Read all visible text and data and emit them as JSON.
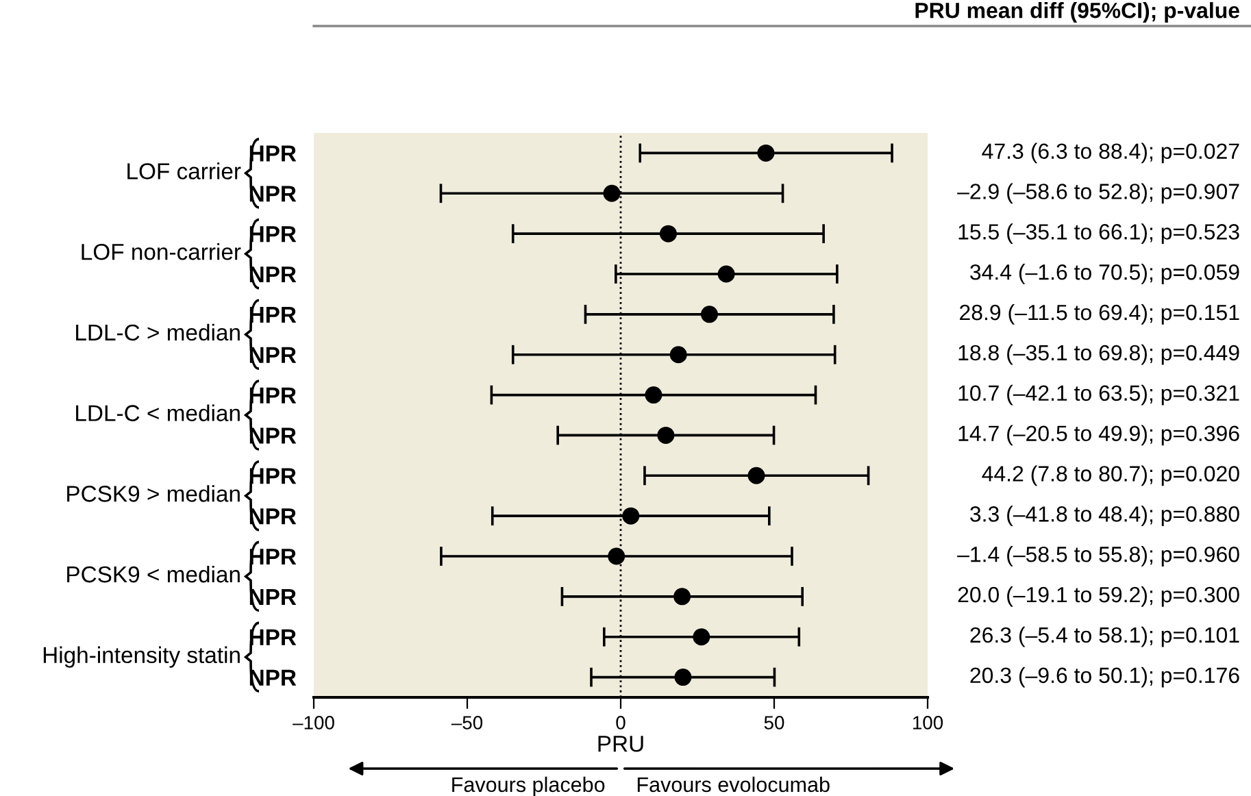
{
  "chart_data": {
    "type": "scatter",
    "orientation": "horizontal",
    "xlabel": "PRU",
    "categories": [
      "HPR",
      "NPR",
      "HPR",
      "NPR",
      "HPR",
      "NPR",
      "HPR",
      "NPR",
      "HPR",
      "NPR",
      "HPR",
      "NPR",
      "HPR",
      "NPR"
    ],
    "values": [
      47.3,
      -2.9,
      15.5,
      34.4,
      28.9,
      18.8,
      10.7,
      14.7,
      44.2,
      3.3,
      -1.4,
      20.0,
      26.3,
      20.3
    ],
    "errors": [
      [
        6.3,
        88.4
      ],
      [
        -58.6,
        52.8
      ],
      [
        -35.1,
        66.1
      ],
      [
        -1.6,
        70.5
      ],
      [
        -11.5,
        69.4
      ],
      [
        -35.1,
        69.8
      ],
      [
        -42.1,
        63.5
      ],
      [
        -20.5,
        49.9
      ],
      [
        7.8,
        80.7
      ],
      [
        -41.8,
        48.4
      ],
      [
        -58.5,
        55.8
      ],
      [
        -19.1,
        59.2
      ],
      [
        -5.4,
        58.1
      ],
      [
        -9.6,
        50.1
      ]
    ],
    "value_labels": [
      "47.3 (6.3 to 88.4); p=0.027",
      "–2.9 (–58.6 to 52.8); p=0.907",
      "15.5 (–35.1 to 66.1); p=0.523",
      "34.4 (–1.6 to 70.5); p=0.059",
      "28.9 (–11.5 to 69.4); p=0.151",
      "18.8 (–35.1 to 69.8); p=0.449",
      "10.7 (–42.1 to 63.5); p=0.321",
      "14.7 (–20.5 to 49.9); p=0.396",
      "44.2 (7.8 to 80.7); p=0.020",
      "3.3 (–41.8 to 48.4); p=0.880",
      "–1.4 (–58.5 to 55.8); p=0.960",
      "20.0 (–19.1 to 59.2); p=0.300",
      "26.3 (–5.4 to 58.1); p=0.101",
      "20.3 (–9.6 to 50.1); p=0.176"
    ],
    "color": "#000000",
    "marker": "circle",
    "xlim": [
      -100,
      100
    ],
    "xticks": [
      {
        "value": -100,
        "label": "–100"
      },
      {
        "value": -50,
        "label": "–50"
      },
      0,
      50,
      100
    ],
    "ref_lines": [
      {
        "axis": "x",
        "value": 0,
        "line_style": "dotted",
        "color": "#000000"
      }
    ],
    "annotations": [
      "LOF carrier",
      "LOF non-carrier",
      "LDL-C > median",
      "LDL-C < median",
      "PCSK9 > median",
      "PCSK9 < median",
      "High-intensity statin",
      "PRU mean diff (95%CI); p-value",
      "Favours placebo",
      "Favours evolocumab"
    ]
  }
}
